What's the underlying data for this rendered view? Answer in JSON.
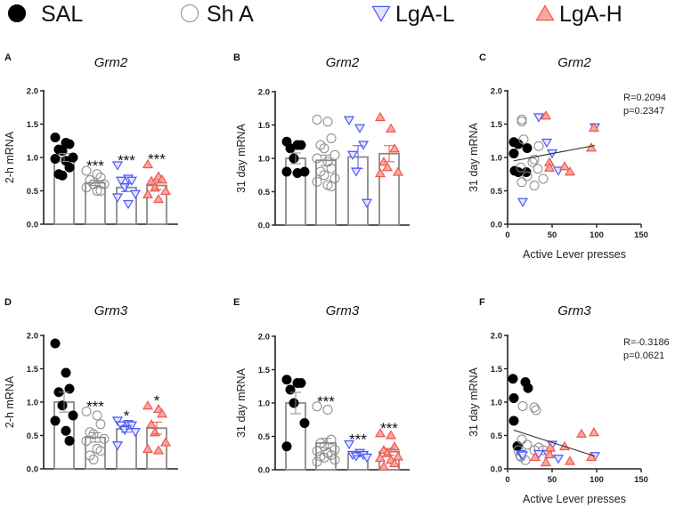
{
  "legend": [
    {
      "label": "SAL",
      "marker": "filled-circle",
      "color": "#000000"
    },
    {
      "label": "Sh A",
      "marker": "open-circle",
      "color": "#888888"
    },
    {
      "label": "LgA-L",
      "marker": "down-triangle",
      "color": "#4a55f5"
    },
    {
      "label": "LgA-H",
      "marker": "up-triangle",
      "color": "#f0564a"
    }
  ],
  "chart_data": [
    {
      "panel": "A",
      "type": "bar",
      "title": "Grm2",
      "ylabel": "2-h mRNA",
      "ylim": [
        0,
        2
      ],
      "yticks": [
        "0.0",
        "0.5",
        "1.0",
        "1.5",
        "2.0"
      ],
      "categories": [
        "SAL",
        "Sh A",
        "LgA-L",
        "LgA-H"
      ],
      "means": [
        1.0,
        0.62,
        0.55,
        0.58
      ],
      "sem": [
        0.06,
        0.04,
        0.06,
        0.06
      ],
      "significance": [
        "",
        "***",
        "***",
        "***"
      ],
      "points": [
        [
          1.3,
          1.22,
          1.2,
          1.12,
          1.1,
          1.0,
          0.98,
          0.95,
          0.85,
          0.75,
          0.73
        ],
        [
          0.8,
          0.75,
          0.7,
          0.66,
          0.6,
          0.6,
          0.55,
          0.5,
          0.5
        ],
        [
          0.88,
          0.68,
          0.65,
          0.65,
          0.55,
          0.45,
          0.4,
          0.3
        ],
        [
          0.9,
          0.72,
          0.67,
          0.65,
          0.55,
          0.5,
          0.45,
          0.38
        ]
      ]
    },
    {
      "panel": "B",
      "type": "bar",
      "title": "Grm2",
      "ylabel": "31 day mRNA",
      "ylim": [
        0,
        2
      ],
      "yticks": [
        "0.0",
        "0.5",
        "1.0",
        "1.5",
        "2.0"
      ],
      "categories": [
        "SAL",
        "Sh A",
        "LgA-L",
        "LgA-H"
      ],
      "means": [
        1.0,
        0.97,
        1.02,
        1.07
      ],
      "sem": [
        0.08,
        0.08,
        0.17,
        0.12
      ],
      "significance": [
        "",
        "",
        "",
        ""
      ],
      "points": [
        [
          1.25,
          1.2,
          1.2,
          1.15,
          1.0,
          0.8,
          0.8,
          0.78
        ],
        [
          1.58,
          1.55,
          1.3,
          1.2,
          1.15,
          1.05,
          1.0,
          0.95,
          0.85,
          0.8,
          0.75,
          0.7,
          0.65,
          0.6,
          0.58
        ],
        [
          1.57,
          1.45,
          1.2,
          1.05,
          0.8,
          0.33
        ],
        [
          1.62,
          1.45,
          1.15,
          0.95,
          0.87,
          0.8,
          0.78
        ]
      ]
    },
    {
      "panel": "C",
      "type": "scatter",
      "title": "Grm2",
      "ylabel": "31 day mRNA",
      "xlabel": "Active Lever presses",
      "xlim": [
        0,
        150
      ],
      "ylim": [
        0,
        2
      ],
      "xticks": [
        "0",
        "50",
        "100",
        "150"
      ],
      "yticks": [
        "0.0",
        "0.5",
        "1.0",
        "1.5",
        "2.0"
      ],
      "stats": [
        "R=0.2094",
        "p=0.2347"
      ],
      "fit": {
        "x": [
          7,
          98
        ],
        "y": [
          0.95,
          1.18
        ]
      },
      "series": [
        {
          "name": "SAL",
          "points": [
            [
              7,
              1.23
            ],
            [
              12,
              1.2
            ],
            [
              22,
              1.14
            ],
            [
              7,
              1.06
            ],
            [
              8,
              0.8
            ],
            [
              12,
              0.78
            ],
            [
              21,
              0.78
            ]
          ]
        },
        {
          "name": "Sh A",
          "points": [
            [
              16,
              1.57
            ],
            [
              16,
              1.54
            ],
            [
              18,
              1.27
            ],
            [
              28,
              0.93
            ],
            [
              30,
              0.97
            ],
            [
              34,
              0.83
            ],
            [
              40,
              0.68
            ],
            [
              30,
              0.58
            ],
            [
              16,
              0.63
            ],
            [
              22,
              0.72
            ],
            [
              35,
              1.17
            ],
            [
              15,
              0.85
            ]
          ]
        },
        {
          "name": "LgA-L",
          "points": [
            [
              35,
              1.6
            ],
            [
              44,
              1.22
            ],
            [
              50,
              1.06
            ],
            [
              57,
              0.8
            ],
            [
              17,
              0.33
            ],
            [
              98,
              1.45
            ]
          ]
        },
        {
          "name": "LgA-H",
          "points": [
            [
              43,
              1.63
            ],
            [
              47,
              0.93
            ],
            [
              47,
              0.85
            ],
            [
              64,
              0.87
            ],
            [
              70,
              0.79
            ],
            [
              94,
              1.15
            ],
            [
              97,
              1.45
            ]
          ]
        }
      ]
    },
    {
      "panel": "D",
      "type": "bar",
      "title": "Grm3",
      "ylabel": "2-h mRNA",
      "ylim": [
        0,
        2
      ],
      "yticks": [
        "0.0",
        "0.5",
        "1.0",
        "1.5",
        "2.0"
      ],
      "categories": [
        "SAL",
        "Sh A",
        "LgA-L",
        "LgA-H"
      ],
      "means": [
        1.0,
        0.47,
        0.6,
        0.61
      ],
      "sem": [
        0.15,
        0.07,
        0.05,
        0.09
      ],
      "significance": [
        "",
        "***",
        "*",
        "*"
      ],
      "points": [
        [
          1.88,
          1.44,
          1.2,
          1.15,
          0.95,
          0.8,
          0.72,
          0.57,
          0.42
        ],
        [
          0.86,
          0.8,
          0.67,
          0.55,
          0.52,
          0.45,
          0.42,
          0.3,
          0.27,
          0.2,
          0.14
        ],
        [
          0.72,
          0.67,
          0.65,
          0.65,
          0.58,
          0.55,
          0.35
        ],
        [
          0.95,
          0.9,
          0.83,
          0.67,
          0.55,
          0.4,
          0.3,
          0.28
        ]
      ]
    },
    {
      "panel": "E",
      "type": "bar",
      "title": "Grm3",
      "ylabel": "31 day mRNA",
      "ylim": [
        0,
        2
      ],
      "yticks": [
        "0.0",
        "0.5",
        "1.0",
        "1.5",
        "2.0"
      ],
      "categories": [
        "SAL",
        "Sh A",
        "LgA-L",
        "LgA-H"
      ],
      "means": [
        1.0,
        0.4,
        0.24,
        0.27
      ],
      "sem": [
        0.16,
        0.07,
        0.03,
        0.05
      ],
      "significance": [
        "",
        "***",
        "***",
        "***"
      ],
      "points": [
        [
          1.35,
          1.3,
          1.3,
          1.2,
          1.0,
          0.7,
          0.35
        ],
        [
          0.95,
          0.9,
          0.45,
          0.4,
          0.35,
          0.3,
          0.28,
          0.25,
          0.22,
          0.2,
          0.18,
          0.15,
          0.12
        ],
        [
          0.38,
          0.25,
          0.22,
          0.22,
          0.2,
          0.18
        ],
        [
          0.55,
          0.52,
          0.35,
          0.3,
          0.25,
          0.2,
          0.18,
          0.15,
          0.1,
          0.05
        ]
      ]
    },
    {
      "panel": "F",
      "type": "scatter",
      "title": "Grm3",
      "ylabel": "31 day mRNA",
      "xlabel": "Active Lever presses",
      "xlim": [
        0,
        150
      ],
      "ylim": [
        0,
        2
      ],
      "xticks": [
        "0",
        "50",
        "100",
        "150"
      ],
      "yticks": [
        "0.0",
        "0.5",
        "1.0",
        "1.5",
        "2.0"
      ],
      "stats": [
        "R=-0.3186",
        "p=0.0621"
      ],
      "fit": {
        "x": [
          7,
          98
        ],
        "y": [
          0.58,
          0.19
        ]
      },
      "series": [
        {
          "name": "SAL",
          "points": [
            [
              6,
              1.35
            ],
            [
              20,
              1.3
            ],
            [
              23,
              1.21
            ],
            [
              7,
              1.06
            ],
            [
              7,
              0.72
            ],
            [
              11,
              0.34
            ]
          ]
        },
        {
          "name": "Sh A",
          "points": [
            [
              17,
              0.94
            ],
            [
              30,
              0.92
            ],
            [
              32,
              0.88
            ],
            [
              16,
              0.44
            ],
            [
              22,
              0.36
            ],
            [
              30,
              0.28
            ],
            [
              35,
              0.32
            ],
            [
              12,
              0.28
            ],
            [
              14,
              0.2
            ],
            [
              15,
              0.18
            ],
            [
              20,
              0.13
            ],
            [
              40,
              0.28
            ]
          ]
        },
        {
          "name": "LgA-L",
          "points": [
            [
              15,
              0.22
            ],
            [
              17,
              0.2
            ],
            [
              35,
              0.22
            ],
            [
              45,
              0.22
            ],
            [
              50,
              0.36
            ],
            [
              57,
              0.15
            ],
            [
              98,
              0.19
            ]
          ]
        },
        {
          "name": "LgA-H",
          "points": [
            [
              31,
              0.18
            ],
            [
              43,
              0.1
            ],
            [
              47,
              0.22
            ],
            [
              48,
              0.32
            ],
            [
              64,
              0.34
            ],
            [
              70,
              0.12
            ],
            [
              83,
              0.53
            ],
            [
              97,
              0.55
            ],
            [
              94,
              0.18
            ]
          ]
        }
      ]
    }
  ]
}
